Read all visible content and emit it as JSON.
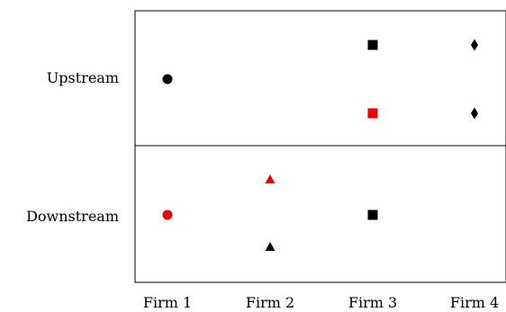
{
  "rows": [
    {
      "id": "upstream",
      "label": "Upstream"
    },
    {
      "id": "downstream",
      "label": "Downstream"
    }
  ],
  "columns": [
    {
      "id": "firm-1",
      "label": "Firm 1"
    },
    {
      "id": "firm-2",
      "label": "Firm 2"
    },
    {
      "id": "firm-3",
      "label": "Firm 3"
    },
    {
      "id": "firm-4",
      "label": "Firm 4"
    }
  ],
  "markers": [
    {
      "row": "upstream",
      "slot": "middle",
      "column": "firm-1",
      "shape": "circle",
      "color": "#000000"
    },
    {
      "row": "upstream",
      "slot": "top",
      "column": "firm-3",
      "shape": "square",
      "color": "#000000"
    },
    {
      "row": "upstream",
      "slot": "bottom",
      "column": "firm-3",
      "shape": "square",
      "color": "#ee0000"
    },
    {
      "row": "upstream",
      "slot": "top",
      "column": "firm-4",
      "shape": "diamond",
      "color": "#000000"
    },
    {
      "row": "upstream",
      "slot": "bottom",
      "column": "firm-4",
      "shape": "diamond",
      "color": "#000000"
    },
    {
      "row": "downstream",
      "slot": "middle",
      "column": "firm-1",
      "shape": "circle",
      "color": "#ee0000"
    },
    {
      "row": "downstream",
      "slot": "top",
      "column": "firm-2",
      "shape": "triangle",
      "color": "#ee0000"
    },
    {
      "row": "downstream",
      "slot": "bottom",
      "column": "firm-2",
      "shape": "triangle",
      "color": "#000000"
    },
    {
      "row": "downstream",
      "slot": "middle",
      "column": "firm-3",
      "shape": "square",
      "color": "#000000"
    }
  ]
}
